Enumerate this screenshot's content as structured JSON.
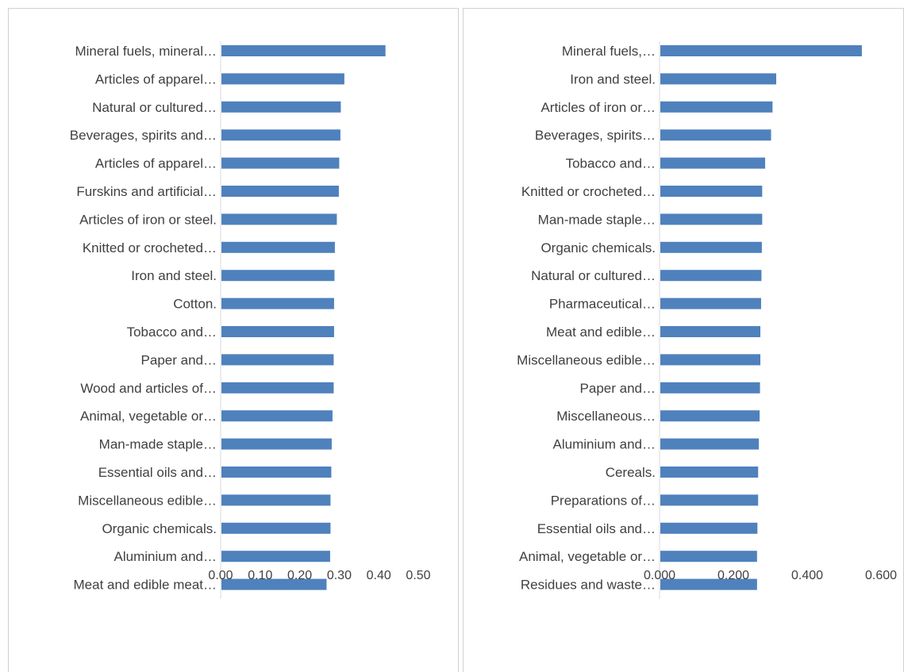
{
  "chart_data": [
    {
      "type": "bar",
      "orientation": "horizontal",
      "categories": [
        "Mineral fuels, mineral…",
        "Articles of apparel…",
        "Natural or cultured…",
        "Beverages, spirits and…",
        "Articles of apparel…",
        "Furskins and artificial…",
        "Articles of iron or steel.",
        "Knitted or crocheted…",
        "Iron and steel.",
        "Cotton.",
        "Tobacco and…",
        "Paper and…",
        "Wood and articles of…",
        "Animal, vegetable or…",
        "Man-made staple…",
        "Essential oils and…",
        "Miscellaneous edible…",
        "Organic chemicals.",
        "Aluminium and…",
        "Meat and edible meat…"
      ],
      "values": [
        0.415,
        0.311,
        0.302,
        0.301,
        0.298,
        0.297,
        0.292,
        0.287,
        0.286,
        0.285,
        0.285,
        0.284,
        0.284,
        0.281,
        0.279,
        0.278,
        0.276,
        0.276,
        0.275,
        0.266
      ],
      "xlim": [
        0,
        0.5
      ],
      "xticks": [
        "0.00",
        "0.10",
        "0.20",
        "0.30",
        "0.40",
        "0.50"
      ],
      "xtick_values": [
        0,
        0.1,
        0.2,
        0.3,
        0.4,
        0.5
      ],
      "bar_color": "#4f81bd",
      "axis_line_color": "#d9d9d9",
      "grid": false,
      "legend": "none",
      "title": "",
      "xlabel": "",
      "ylabel": ""
    },
    {
      "type": "bar",
      "orientation": "horizontal",
      "categories": [
        "Mineral fuels,…",
        "Iron and steel.",
        "Articles of iron or…",
        "Beverages, spirits…",
        "Tobacco and…",
        "Knitted or crocheted…",
        "Man-made staple…",
        "Organic chemicals.",
        "Natural or cultured…",
        "Pharmaceutical…",
        "Meat and edible…",
        "Miscellaneous edible…",
        "Paper and…",
        "Miscellaneous…",
        "Aluminium and…",
        "Cereals.",
        "Preparations of…",
        "Essential oils and…",
        "Animal, vegetable or…",
        "Residues and waste…"
      ],
      "values": [
        0.546,
        0.314,
        0.304,
        0.3,
        0.284,
        0.276,
        0.276,
        0.275,
        0.274,
        0.273,
        0.271,
        0.271,
        0.27,
        0.269,
        0.267,
        0.265,
        0.265,
        0.263,
        0.262,
        0.262
      ],
      "xlim": [
        0,
        0.6
      ],
      "xticks": [
        "0.000",
        "0.200",
        "0.400",
        "0.600"
      ],
      "xtick_values": [
        0,
        0.2,
        0.4,
        0.6
      ],
      "bar_color": "#4f81bd",
      "axis_line_color": "#d9d9d9",
      "grid": false,
      "legend": "none",
      "title": "",
      "xlabel": "",
      "ylabel": ""
    }
  ]
}
